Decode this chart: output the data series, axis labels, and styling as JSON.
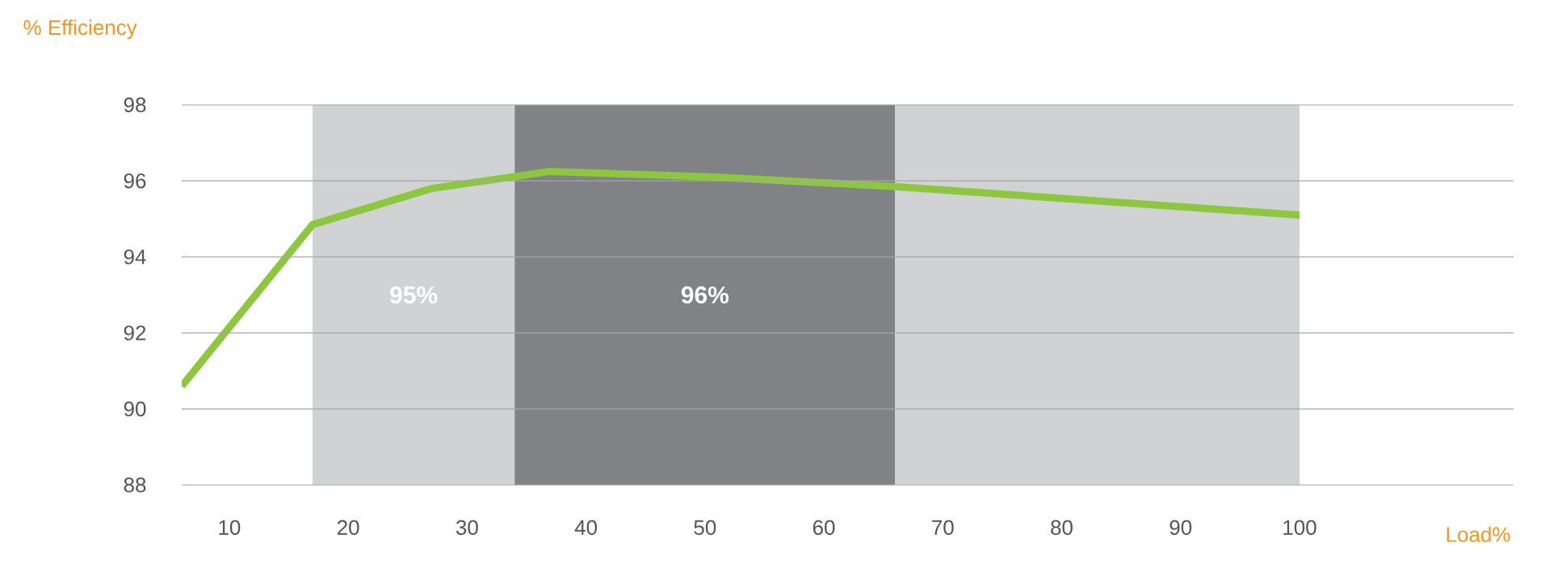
{
  "chart_data": {
    "type": "line",
    "xlabel": "Load%",
    "ylabel": "% Efficiency",
    "x": [
      6,
      17,
      27,
      37,
      51,
      66,
      100
    ],
    "values": [
      90.6,
      94.85,
      95.8,
      96.25,
      96.1,
      95.85,
      95.1
    ],
    "color": "#8dc63f",
    "xlim": [
      6,
      118
    ],
    "ylim": [
      88,
      98
    ],
    "xticks": [
      10,
      20,
      30,
      40,
      50,
      60,
      70,
      80,
      90,
      100
    ],
    "yticks": [
      88,
      90,
      92,
      94,
      96,
      98
    ],
    "grid": "y",
    "bands": [
      {
        "axis": "x",
        "from": 17,
        "to": 34,
        "label": "95%",
        "color": "#d1d2d4"
      },
      {
        "axis": "x",
        "from": 34,
        "to": 66,
        "label": "96%",
        "color": "#808285"
      },
      {
        "axis": "x",
        "from": 66,
        "to": 100,
        "color": "#d1d2d4"
      }
    ]
  }
}
